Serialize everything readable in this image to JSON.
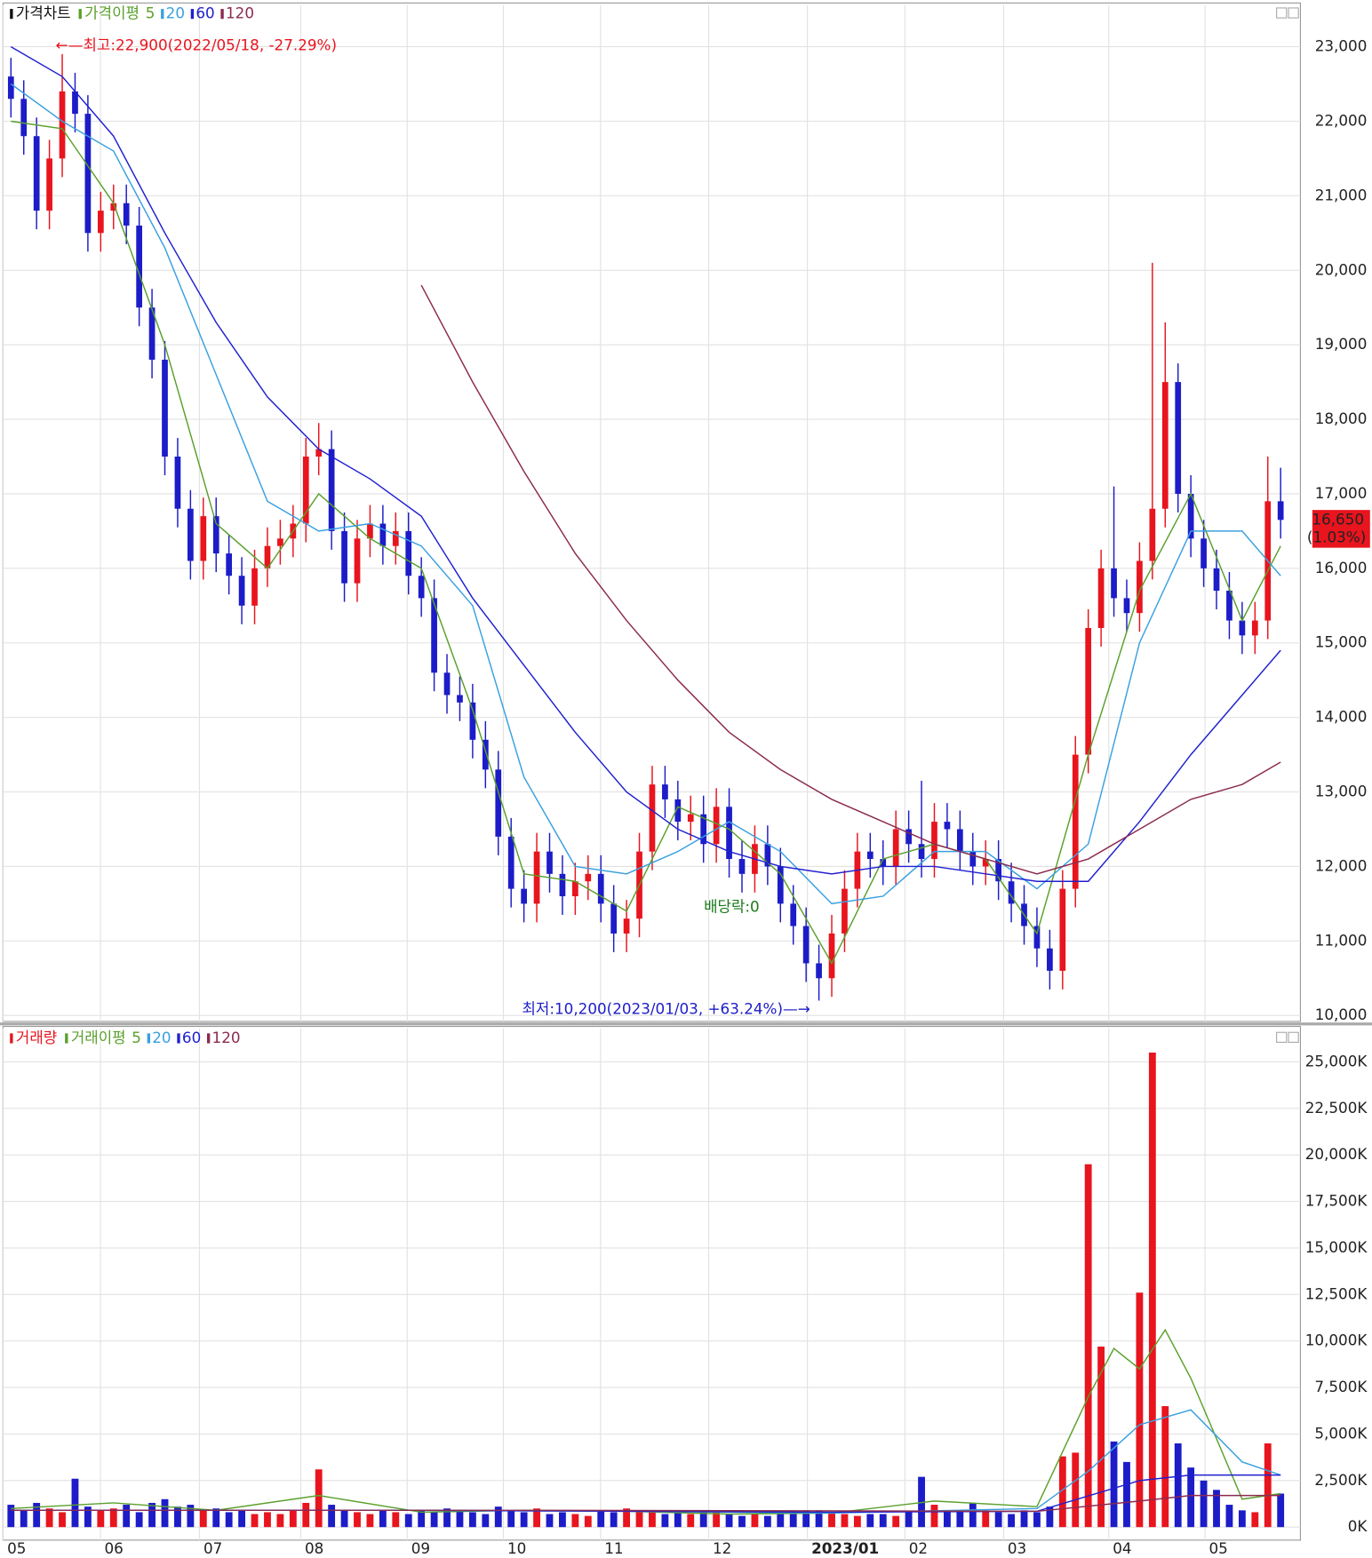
{
  "chart_data": [
    {
      "type": "candlestick",
      "title": "가격차트",
      "ma_title": "가격이평",
      "open": [
        22600,
        22300,
        21800,
        20800,
        21500,
        22400,
        22100,
        20500,
        20800,
        20900,
        20600,
        19500,
        18800,
        17500,
        16800,
        16100,
        16700,
        16200,
        15900,
        15500,
        16000,
        16300,
        16400,
        16600,
        17500,
        17600,
        16500,
        15800,
        16400,
        16600,
        16300,
        16500,
        15900,
        15600,
        14600,
        14300,
        14200,
        13700,
        13300,
        12400,
        11700,
        11500,
        12200,
        11900,
        11600,
        11800,
        11900,
        11500,
        11100,
        11300,
        12200,
        13100,
        12900,
        12600,
        12700,
        12300,
        12800,
        12100,
        11900,
        12300,
        12000,
        11500,
        11200,
        10700,
        10500,
        11100,
        11700,
        12200,
        12100,
        12000,
        12500,
        12300,
        12100,
        12600,
        12500,
        12200,
        12000,
        12100,
        11800,
        11500,
        11200,
        10900,
        10600,
        11700,
        13500,
        15200,
        16000,
        15600,
        15400,
        16100,
        16800,
        18500,
        17000,
        16400,
        16000,
        15700,
        15300,
        15100,
        15300,
        16900
      ],
      "high": [
        22850,
        22550,
        22050,
        21750,
        22900,
        22650,
        22350,
        21050,
        21150,
        21150,
        20850,
        19750,
        19050,
        17750,
        17050,
        16950,
        16950,
        16450,
        16150,
        16250,
        16550,
        16650,
        16850,
        17750,
        17950,
        17850,
        16750,
        16650,
        16850,
        16850,
        16750,
        16750,
        16150,
        15850,
        14850,
        14550,
        14450,
        13950,
        13550,
        12650,
        11950,
        12450,
        12450,
        12150,
        12050,
        12150,
        12150,
        11750,
        11550,
        12450,
        13350,
        13350,
        13150,
        12950,
        12950,
        13050,
        13050,
        12350,
        12550,
        12550,
        12250,
        11750,
        11450,
        10950,
        11350,
        11950,
        12450,
        12450,
        12350,
        12750,
        12750,
        13150,
        12850,
        12850,
        12750,
        12450,
        12350,
        12350,
        12050,
        11750,
        11450,
        11150,
        11950,
        13750,
        15450,
        16250,
        17100,
        15850,
        16350,
        20100,
        19300,
        18750,
        17250,
        16650,
        16250,
        15950,
        15550,
        15550,
        17500,
        17350
      ],
      "low": [
        22050,
        21550,
        20550,
        20550,
        21250,
        21850,
        20250,
        20250,
        20550,
        20350,
        19250,
        18550,
        17250,
        16550,
        15850,
        15850,
        15950,
        15650,
        15250,
        15250,
        15750,
        16050,
        16150,
        16350,
        17250,
        16250,
        15550,
        15550,
        16150,
        16050,
        16050,
        15650,
        15350,
        14350,
        14050,
        13950,
        13450,
        13050,
        12150,
        11450,
        11250,
        11250,
        11650,
        11350,
        11350,
        11550,
        11250,
        10850,
        10850,
        11050,
        11950,
        12650,
        12350,
        12350,
        12050,
        12050,
        11850,
        11650,
        11650,
        11750,
        11250,
        10950,
        10450,
        10200,
        10250,
        10850,
        11450,
        11850,
        11750,
        11750,
        12050,
        11850,
        11850,
        12250,
        11950,
        11750,
        11750,
        11550,
        11250,
        10950,
        10650,
        10350,
        10350,
        11450,
        13250,
        14950,
        15350,
        15150,
        15150,
        15850,
        16550,
        16750,
        16150,
        15750,
        15450,
        15050,
        14850,
        14850,
        15050,
        16400
      ],
      "close": [
        22300,
        21800,
        20800,
        21500,
        22400,
        22100,
        20500,
        20800,
        20900,
        20600,
        19500,
        18800,
        17500,
        16800,
        16100,
        16700,
        16200,
        15900,
        15500,
        16000,
        16300,
        16400,
        16600,
        17500,
        17600,
        16500,
        15800,
        16400,
        16600,
        16300,
        16500,
        15900,
        15600,
        14600,
        14300,
        14200,
        13700,
        13300,
        12400,
        11700,
        11500,
        12200,
        11900,
        11600,
        11800,
        11900,
        11500,
        11100,
        11300,
        12200,
        13100,
        12900,
        12600,
        12700,
        12300,
        12800,
        12100,
        11900,
        12300,
        12000,
        11500,
        11200,
        10700,
        10500,
        11100,
        11700,
        12200,
        12100,
        12000,
        12500,
        12300,
        12100,
        12600,
        12500,
        12200,
        12000,
        12100,
        11800,
        11500,
        11200,
        10900,
        10600,
        11700,
        13500,
        15200,
        16000,
        15600,
        15400,
        16100,
        16800,
        18500,
        17000,
        16400,
        16000,
        15700,
        15300,
        15100,
        15300,
        16900,
        16650
      ],
      "up_color": "#e8141e",
      "down_color": "#1c1cc8",
      "ma_lines": [
        {
          "name": "5",
          "color": "#5aa02c",
          "x": [
            0,
            4,
            8,
            12,
            16,
            20,
            24,
            28,
            32,
            36,
            40,
            44,
            48,
            52,
            56,
            60,
            64,
            68,
            72,
            76,
            80,
            84,
            88,
            92,
            96,
            99
          ],
          "values": [
            22000,
            21900,
            20900,
            19000,
            16600,
            16000,
            17000,
            16400,
            16000,
            14100,
            11900,
            11800,
            11400,
            12800,
            12500,
            11900,
            10700,
            12100,
            12300,
            12100,
            11100,
            13500,
            15700,
            17000,
            15300,
            16300
          ]
        },
        {
          "name": "20",
          "color": "#3aa0e0",
          "x": [
            0,
            4,
            8,
            12,
            16,
            20,
            24,
            28,
            32,
            36,
            40,
            44,
            48,
            52,
            56,
            60,
            64,
            68,
            72,
            76,
            80,
            84,
            88,
            92,
            96,
            99
          ],
          "values": [
            22500,
            22000,
            21600,
            20300,
            18600,
            16900,
            16500,
            16600,
            16300,
            15500,
            13200,
            12000,
            11900,
            12200,
            12600,
            12200,
            11500,
            11600,
            12200,
            12200,
            11700,
            12300,
            15000,
            16500,
            16500,
            15900
          ]
        },
        {
          "name": "60",
          "color": "#2020d0",
          "x": [
            0,
            4,
            8,
            12,
            16,
            20,
            24,
            28,
            32,
            36,
            40,
            44,
            48,
            52,
            56,
            60,
            64,
            68,
            72,
            76,
            80,
            84,
            88,
            92,
            96,
            99
          ],
          "values": [
            23000,
            22600,
            21800,
            20500,
            19300,
            18300,
            17600,
            17200,
            16700,
            15600,
            14700,
            13800,
            13000,
            12500,
            12200,
            12000,
            11900,
            12000,
            12000,
            11900,
            11800,
            11800,
            12600,
            13500,
            14300,
            14900
          ]
        },
        {
          "name": "120",
          "color": "#8b2a50",
          "x": [
            32,
            36,
            40,
            44,
            48,
            52,
            56,
            60,
            64,
            68,
            72,
            76,
            80,
            84,
            88,
            92,
            96,
            99
          ],
          "values": [
            19800,
            18500,
            17300,
            16200,
            15300,
            14500,
            13800,
            13300,
            12900,
            12600,
            12300,
            12100,
            11900,
            12100,
            12500,
            12900,
            13100,
            13400
          ]
        }
      ],
      "ylim": [
        9920,
        23560
      ],
      "yticks": [
        {
          "value": 10000,
          "label": "10,000"
        },
        {
          "value": 11000,
          "label": "11,000"
        },
        {
          "value": 12000,
          "label": "12,000"
        },
        {
          "value": 13000,
          "label": "13,000"
        },
        {
          "value": 14000,
          "label": "14,000"
        },
        {
          "value": 15000,
          "label": "15,000"
        },
        {
          "value": 16000,
          "label": "16,000"
        },
        {
          "value": 17000,
          "label": "17,000"
        },
        {
          "value": 18000,
          "label": "18,000"
        },
        {
          "value": 19000,
          "label": "19,000"
        },
        {
          "value": 20000,
          "label": "20,000"
        },
        {
          "value": 21000,
          "label": "21,000"
        },
        {
          "value": 22000,
          "label": "22,000"
        },
        {
          "value": 23000,
          "label": "23,000"
        }
      ],
      "grid": true,
      "annotations": {
        "high": "←—최고:22,900(2022/05/18, -27.29%)",
        "low": "최저:10,200(2023/01/03, +63.24%)—→",
        "dividend": "배당락:0"
      },
      "last_price": {
        "value": 16650,
        "label": "16,650"
      },
      "last_change": "(1.03%)"
    },
    {
      "type": "bar",
      "title": "거래량",
      "ma_title": "거래이평",
      "values": [
        1200,
        900,
        1300,
        1000,
        800,
        2600,
        1100,
        900,
        1000,
        1200,
        800,
        1300,
        1500,
        1100,
        1200,
        900,
        1000,
        800,
        900,
        700,
        800,
        700,
        900,
        1300,
        3100,
        1200,
        900,
        800,
        700,
        900,
        800,
        700,
        900,
        800,
        1000,
        900,
        800,
        700,
        1100,
        900,
        800,
        1000,
        700,
        800,
        700,
        600,
        900,
        800,
        1000,
        900,
        800,
        700,
        800,
        700,
        900,
        800,
        700,
        600,
        700,
        600,
        800,
        700,
        900,
        900,
        800,
        700,
        600,
        700,
        700,
        600,
        800,
        2700,
        1200,
        900,
        800,
        1300,
        900,
        800,
        700,
        900,
        800,
        1100,
        3800,
        4000,
        19500,
        9700,
        4600,
        3500,
        12600,
        25500,
        6500,
        4500,
        3200,
        2500,
        2000,
        1200,
        900,
        800,
        4500,
        1800
      ],
      "ma_lines": [
        {
          "name": "5",
          "color": "#5aa02c",
          "x": [
            0,
            8,
            16,
            24,
            32,
            40,
            48,
            56,
            64,
            72,
            80,
            84,
            86,
            88,
            90,
            92,
            96,
            99
          ],
          "values": [
            1000,
            1300,
            900,
            1700,
            800,
            900,
            850,
            700,
            750,
            1400,
            1100,
            7000,
            9600,
            8500,
            10600,
            8000,
            1500,
            1800
          ]
        },
        {
          "name": "20",
          "color": "#3aa0e0",
          "x": [
            0,
            16,
            32,
            48,
            64,
            80,
            84,
            88,
            92,
            96,
            99
          ],
          "values": [
            900,
            900,
            900,
            850,
            750,
            1000,
            3000,
            5500,
            6300,
            3500,
            2800
          ]
        },
        {
          "name": "60",
          "color": "#2020d0",
          "x": [
            0,
            32,
            64,
            80,
            88,
            92,
            99
          ],
          "values": [
            900,
            900,
            800,
            850,
            2500,
            2800,
            2800
          ]
        },
        {
          "name": "120",
          "color": "#8b2a50",
          "x": [
            0,
            40,
            80,
            88,
            92,
            99
          ],
          "values": [
            900,
            900,
            850,
            1400,
            1700,
            1700
          ]
        }
      ],
      "ylim": [
        -700,
        26800
      ],
      "yticks": [
        {
          "value": 0,
          "label": "0K"
        },
        {
          "value": 2500,
          "label": "2,500K"
        },
        {
          "value": 5000,
          "label": "5,000K"
        },
        {
          "value": 7500,
          "label": "7,500K"
        },
        {
          "value": 10000,
          "label": "10,000K"
        },
        {
          "value": 12500,
          "label": "12,500K"
        },
        {
          "value": 15000,
          "label": "15,000K"
        },
        {
          "value": 17500,
          "label": "17,500K"
        },
        {
          "value": 20000,
          "label": "20,000K"
        },
        {
          "value": 22500,
          "label": "22,500K"
        },
        {
          "value": 25000,
          "label": "25,000K"
        }
      ],
      "xticks": [
        {
          "value": -0.6,
          "label": "05"
        },
        {
          "value": 6.98,
          "label": "06"
        },
        {
          "value": 14.7,
          "label": "07"
        },
        {
          "value": 22.6,
          "label": "08"
        },
        {
          "value": 30.9,
          "label": "09"
        },
        {
          "value": 38.4,
          "label": "10"
        },
        {
          "value": 45.97,
          "label": "11"
        },
        {
          "value": 54.4,
          "label": "12"
        },
        {
          "value": 62.1,
          "label": "2023/01"
        },
        {
          "value": 69.7,
          "label": "02"
        },
        {
          "value": 77.4,
          "label": "03"
        },
        {
          "value": 85.6,
          "label": "04"
        },
        {
          "value": 93.1,
          "label": "05"
        }
      ],
      "grid": true
    }
  ]
}
